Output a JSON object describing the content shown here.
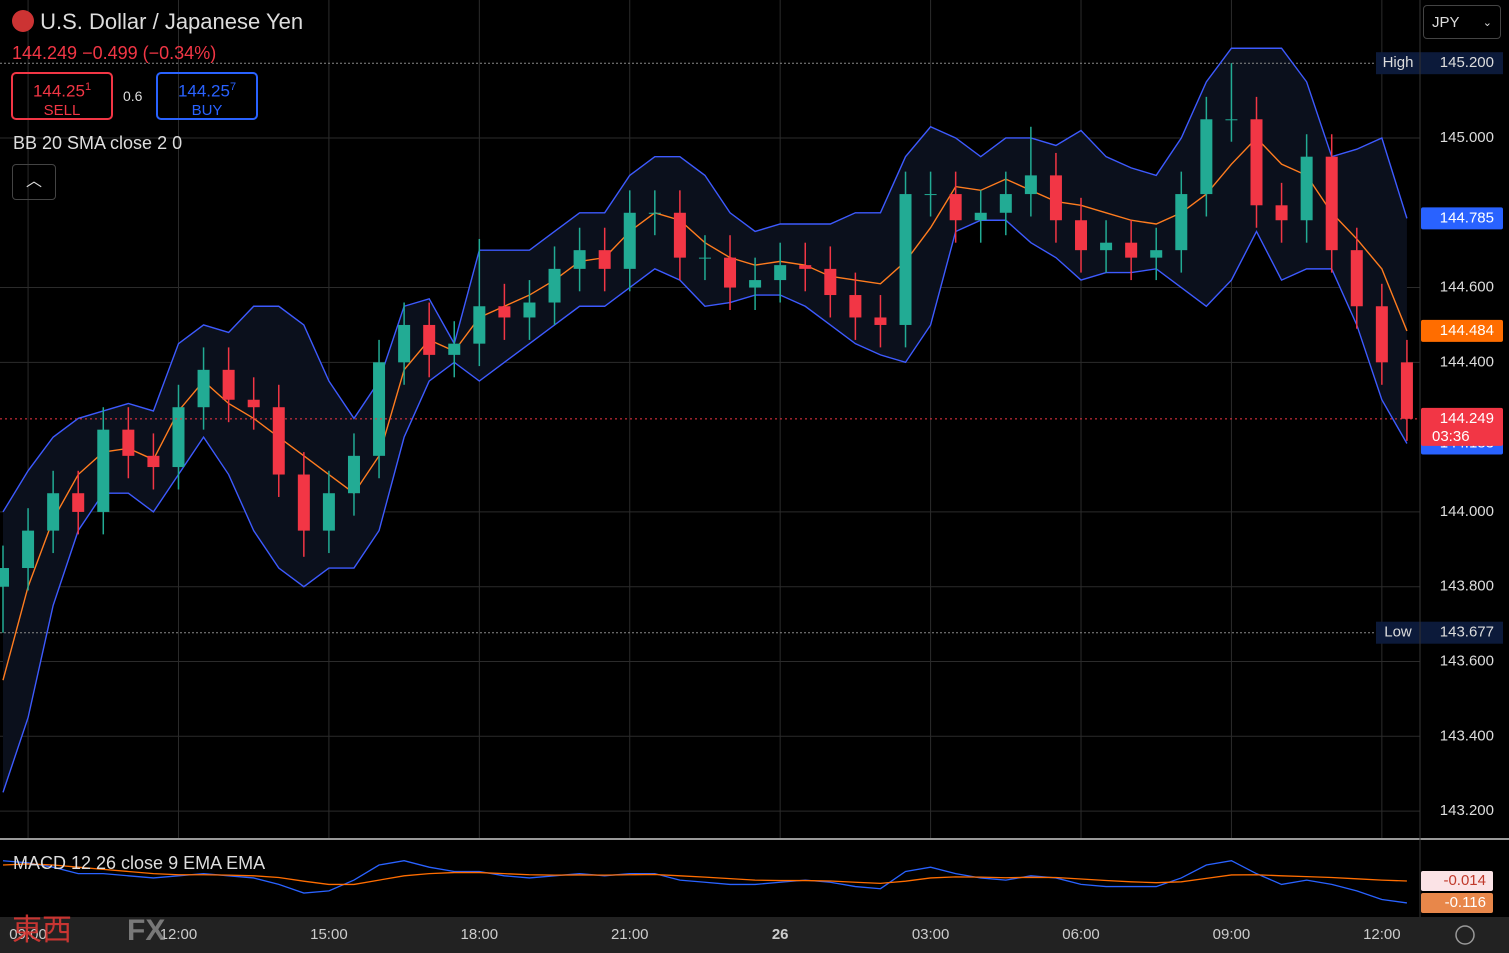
{
  "header": {
    "symbol": "U.S. Dollar / Japanese Yen",
    "change": "−0.499 (−0.34%)",
    "sell_price": "144.25",
    "sell_digit": "1",
    "sell_label": "SELL",
    "spread": "0.6",
    "buy_price": "144.25",
    "buy_digit": "7",
    "buy_label": "BUY",
    "bb_label": "BB 20 SMA close 2 0",
    "macd_label": "MACD 12 26 close 9 EMA EMA",
    "currency": "JPY",
    "countdown": "03:36",
    "watermark_cn": "東西",
    "watermark_fx": "FX"
  },
  "chart_data": {
    "type": "candlestick",
    "categories": [
      null,
      "09:00",
      null,
      null,
      null,
      null,
      null,
      "12:00",
      null,
      null,
      null,
      null,
      null,
      "15:00",
      null,
      null,
      null,
      null,
      null,
      "18:00",
      null,
      null,
      null,
      null,
      null,
      "21:00",
      null,
      null,
      null,
      null,
      null,
      "26",
      null,
      null,
      null,
      null,
      null,
      "03:00",
      null,
      null,
      null,
      null,
      null,
      "06:00",
      null,
      null,
      null,
      null,
      null,
      "09:00",
      null,
      null,
      null,
      null,
      null,
      "12:00",
      null
    ],
    "open": [
      143.8,
      143.85,
      143.95,
      144.05,
      144.0,
      144.22,
      144.15,
      144.12,
      144.28,
      144.38,
      144.3,
      144.28,
      144.1,
      143.95,
      144.05,
      144.15,
      144.4,
      144.5,
      144.42,
      144.45,
      144.55,
      144.52,
      144.56,
      144.65,
      144.7,
      144.65,
      144.8,
      144.8,
      144.68,
      144.68,
      144.6,
      144.62,
      144.66,
      144.65,
      144.58,
      144.52,
      144.5,
      144.85,
      144.85,
      144.78,
      144.8,
      144.85,
      144.9,
      144.78,
      144.7,
      144.72,
      144.68,
      144.7,
      144.85,
      145.05,
      145.05,
      144.82,
      144.78,
      144.95,
      144.7,
      144.55,
      144.4
    ],
    "high": [
      143.91,
      144.01,
      144.11,
      144.11,
      144.28,
      144.28,
      144.21,
      144.34,
      144.44,
      144.44,
      144.36,
      144.34,
      144.16,
      144.11,
      144.21,
      144.46,
      144.56,
      144.56,
      144.51,
      144.73,
      144.61,
      144.62,
      144.71,
      144.76,
      144.76,
      144.86,
      144.86,
      144.86,
      144.74,
      144.74,
      144.68,
      144.72,
      144.72,
      144.71,
      144.64,
      144.58,
      144.91,
      144.91,
      144.91,
      144.86,
      144.91,
      145.03,
      144.96,
      144.84,
      144.78,
      144.78,
      144.76,
      144.91,
      145.11,
      145.2,
      145.11,
      144.88,
      145.01,
      145.01,
      144.76,
      144.61,
      144.46
    ],
    "low": [
      143.677,
      143.79,
      143.89,
      143.94,
      143.94,
      144.09,
      144.06,
      144.06,
      144.22,
      144.24,
      144.22,
      144.04,
      143.88,
      143.89,
      143.99,
      144.09,
      144.34,
      144.36,
      144.36,
      144.39,
      144.46,
      144.46,
      144.5,
      144.59,
      144.59,
      144.59,
      144.74,
      144.62,
      144.62,
      144.54,
      144.54,
      144.56,
      144.59,
      144.52,
      144.46,
      144.44,
      144.44,
      144.79,
      144.72,
      144.72,
      144.74,
      144.79,
      144.72,
      144.64,
      144.64,
      144.62,
      144.62,
      144.64,
      144.79,
      144.99,
      144.76,
      144.72,
      144.72,
      144.64,
      144.49,
      144.34,
      144.19
    ],
    "close": [
      143.85,
      143.95,
      144.05,
      144.0,
      144.22,
      144.15,
      144.12,
      144.28,
      144.38,
      144.3,
      144.28,
      144.1,
      143.95,
      144.05,
      144.15,
      144.4,
      144.5,
      144.42,
      144.45,
      144.55,
      144.52,
      144.56,
      144.65,
      144.7,
      144.65,
      144.8,
      144.8,
      144.68,
      144.68,
      144.6,
      144.62,
      144.66,
      144.65,
      144.58,
      144.52,
      144.5,
      144.85,
      144.85,
      144.78,
      144.8,
      144.85,
      144.9,
      144.78,
      144.7,
      144.72,
      144.68,
      144.7,
      144.85,
      145.05,
      145.05,
      144.82,
      144.78,
      144.95,
      144.7,
      144.55,
      144.4,
      144.249
    ],
    "up_color": "#22ab94",
    "down_color": "#f23645",
    "series": [
      {
        "color": "#3d5afe",
        "values": [
          144.0,
          144.11,
          144.2,
          144.25,
          144.27,
          144.29,
          144.27,
          144.45,
          144.5,
          144.48,
          144.55,
          144.55,
          144.5,
          144.35,
          144.25,
          144.35,
          144.55,
          144.57,
          144.45,
          144.7,
          144.7,
          144.7,
          144.75,
          144.8,
          144.8,
          144.9,
          144.95,
          144.95,
          144.9,
          144.8,
          144.75,
          144.77,
          144.77,
          144.77,
          144.8,
          144.8,
          144.95,
          145.03,
          145.0,
          144.95,
          145.0,
          145.0,
          144.98,
          145.02,
          144.95,
          144.92,
          144.9,
          145.0,
          145.15,
          145.24,
          145.24,
          145.24,
          145.15,
          144.95,
          144.97,
          145.0,
          144.785
        ],
        "badge_color": "#2962ff"
      },
      {
        "color": "#ff7c1f",
        "values": [
          143.55,
          143.8,
          143.98,
          144.1,
          144.16,
          144.17,
          144.14,
          144.27,
          144.35,
          144.29,
          144.25,
          144.2,
          144.15,
          144.1,
          144.05,
          144.15,
          144.38,
          144.46,
          144.43,
          144.52,
          144.55,
          144.58,
          144.62,
          144.67,
          144.68,
          144.75,
          144.8,
          144.78,
          144.72,
          144.68,
          144.66,
          144.67,
          144.66,
          144.63,
          144.62,
          144.61,
          144.67,
          144.76,
          144.87,
          144.86,
          144.89,
          144.86,
          144.83,
          144.82,
          144.8,
          144.78,
          144.77,
          144.8,
          144.85,
          144.93,
          145.0,
          144.93,
          144.9,
          144.8,
          144.73,
          144.65,
          144.484
        ],
        "badge_color": "#ff6d00"
      },
      {
        "color": "#3d5afe",
        "values": [
          143.25,
          143.45,
          143.75,
          143.95,
          144.05,
          144.05,
          144.0,
          144.1,
          144.2,
          144.1,
          143.95,
          143.85,
          143.8,
          143.85,
          143.85,
          143.95,
          144.2,
          144.35,
          144.4,
          144.35,
          144.4,
          144.45,
          144.5,
          144.55,
          144.55,
          144.6,
          144.65,
          144.62,
          144.55,
          144.56,
          144.58,
          144.58,
          144.55,
          144.5,
          144.45,
          144.42,
          144.4,
          144.5,
          144.75,
          144.78,
          144.78,
          144.72,
          144.68,
          144.62,
          144.64,
          144.64,
          144.65,
          144.6,
          144.55,
          144.62,
          144.75,
          144.62,
          144.65,
          144.65,
          144.5,
          144.3,
          144.183
        ],
        "badge_color": "#2962ff"
      }
    ],
    "band_fill": "#0b101c",
    "ylim": [
      143.128,
      145.369
    ],
    "yticks": [
      {
        "value": 145.0,
        "label": "145.000"
      },
      {
        "value": 144.6,
        "label": "144.600"
      },
      {
        "value": 144.4,
        "label": "144.400"
      },
      {
        "value": 144.0,
        "label": "144.000"
      },
      {
        "value": 143.8,
        "label": "143.800"
      },
      {
        "value": 143.6,
        "label": "143.600"
      },
      {
        "value": 143.4,
        "label": "143.400"
      },
      {
        "value": 143.2,
        "label": "143.200"
      }
    ],
    "grid": true,
    "high_line": {
      "name": "High",
      "value": 145.2,
      "label": "145.200"
    },
    "low_line": {
      "name": "Low",
      "value": 143.677
    },
    "macd": {
      "ylim": [
        -0.172,
        0.153
      ],
      "series": [
        {
          "color": "#2962ff",
          "values": [
            0.08,
            0.07,
            0.05,
            0.02,
            0.02,
            0.01,
            0,
            0.01,
            0.02,
            0.01,
            0,
            -0.03,
            -0.07,
            -0.06,
            -0.01,
            0.06,
            0.08,
            0.05,
            0.03,
            0.03,
            0.01,
            0,
            0.01,
            0.02,
            0.01,
            0.02,
            0.02,
            -0.01,
            -0.02,
            -0.03,
            -0.03,
            -0.02,
            -0.01,
            -0.02,
            -0.04,
            -0.05,
            0.03,
            0.05,
            0.02,
            0,
            -0.01,
            0.01,
            0,
            -0.03,
            -0.04,
            -0.04,
            -0.04,
            0,
            0.06,
            0.08,
            0.02,
            -0.03,
            -0.01,
            -0.03,
            -0.06,
            -0.1,
            -0.116
          ],
          "badge_color": "#e8874a"
        },
        {
          "color": "#ff6d00",
          "values": [
            0.06,
            0.065,
            0.06,
            0.05,
            0.04,
            0.03,
            0.02,
            0.015,
            0.015,
            0.013,
            0.01,
            0.002,
            -0.015,
            -0.03,
            -0.03,
            -0.01,
            0.01,
            0.02,
            0.025,
            0.025,
            0.02,
            0.015,
            0.013,
            0.014,
            0.013,
            0.015,
            0.016,
            0.01,
            0.004,
            -0.003,
            -0.01,
            -0.012,
            -0.012,
            -0.014,
            -0.02,
            -0.025,
            -0.015,
            0,
            0.005,
            0.004,
            0.001,
            0.003,
            0.002,
            -0.005,
            -0.012,
            -0.018,
            -0.022,
            -0.018,
            -0.002,
            0.014,
            0.015,
            0.01,
            0.006,
            0.002,
            -0.004,
            -0.01,
            -0.014
          ],
          "badge_color": "#fbe3e6"
        }
      ]
    }
  }
}
